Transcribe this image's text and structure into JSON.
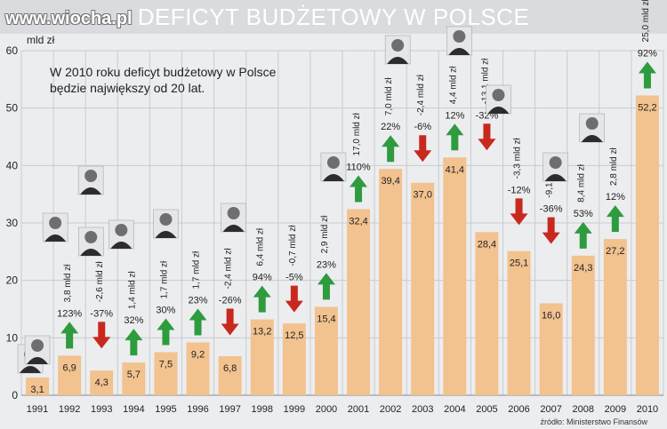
{
  "watermark": "www.wiocha.pl",
  "chart_data": {
    "type": "bar",
    "title": "DEFICYT BUDŻETOWY W POLSCE",
    "ylabel": "mld zł",
    "ylim": [
      0,
      60
    ],
    "yticks": [
      0,
      10,
      20,
      30,
      40,
      50,
      60
    ],
    "categories": [
      "1991",
      "1992",
      "1993",
      "1994",
      "1995",
      "1996",
      "1997",
      "1998",
      "1999",
      "2000",
      "2001",
      "2002",
      "2003",
      "2004",
      "2005",
      "2006",
      "2007",
      "2008",
      "2009",
      "2010"
    ],
    "values": [
      3.1,
      6.9,
      4.3,
      5.7,
      7.5,
      9.2,
      6.8,
      13.2,
      12.5,
      15.4,
      32.4,
      39.4,
      37.0,
      41.4,
      28.4,
      25.1,
      16.0,
      24.3,
      27.2,
      52.2
    ],
    "value_labels": [
      "3,1",
      "6,9",
      "4,3",
      "5,7",
      "7,5",
      "9,2",
      "6,8",
      "13,2",
      "12,5",
      "15,4",
      "32,4",
      "39,4",
      "37,0",
      "41,4",
      "28,4",
      "25,1",
      "16,0",
      "24,3",
      "27,2",
      "52,2"
    ],
    "change_amounts": [
      "",
      "3,8 mld zł",
      "-2,6 mld zł",
      "1,4 mld zł",
      "1,7 mld zł",
      "1,7 mld zł",
      "-2,4 mld zł",
      "6,4 mld zł",
      "-0,7 mld zł",
      "2,9 mld zł",
      "17,0 mld zł",
      "7,0 mld zł",
      "-2,4 mld zł",
      "4,4 mld zł",
      "-13,1 mld zł",
      "-3,3 mld zł",
      "-9,1 mld zł",
      "8,4 mld zł",
      "2,8 mld zł",
      "25,0 mld zł"
    ],
    "change_percents": [
      "",
      "123%",
      "-37%",
      "32%",
      "30%",
      "23%",
      "-26%",
      "94%",
      "-5%",
      "23%",
      "110%",
      "22%",
      "-6%",
      "12%",
      "-32%",
      "-12%",
      "-36%",
      "53%",
      "12%",
      "92%"
    ],
    "annotation": "W 2010 roku deficyt budżetowy w Polsce\nbędzie największy od  20 lat.",
    "source": "źródło: Ministerstwo Finansów",
    "grid": true,
    "legend": "none"
  },
  "colors": {
    "bar": "#f2c28f",
    "up_arrow": "#2e9b3e",
    "down_arrow": "#c9281e",
    "grid": "#c9cbcf",
    "text": "#222222"
  },
  "portraits": [
    {
      "name": "portrait-icon",
      "year_index": 0
    },
    {
      "name": "portrait-icon",
      "year_index": 0
    },
    {
      "name": "portrait-icon",
      "year_index": 1
    },
    {
      "name": "portrait-icon",
      "year_index": 1
    },
    {
      "name": "portrait-icon",
      "year_index": 2
    },
    {
      "name": "portrait-icon",
      "year_index": 3
    },
    {
      "name": "portrait-icon",
      "year_index": 4
    },
    {
      "name": "portrait-icon",
      "year_index": 6
    },
    {
      "name": "portrait-icon",
      "year_index": 9
    },
    {
      "name": "portrait-icon",
      "year_index": 11
    },
    {
      "name": "portrait-icon",
      "year_index": 13
    },
    {
      "name": "portrait-icon",
      "year_index": 14
    },
    {
      "name": "portrait-icon",
      "year_index": 16
    },
    {
      "name": "portrait-icon",
      "year_index": 17
    }
  ]
}
